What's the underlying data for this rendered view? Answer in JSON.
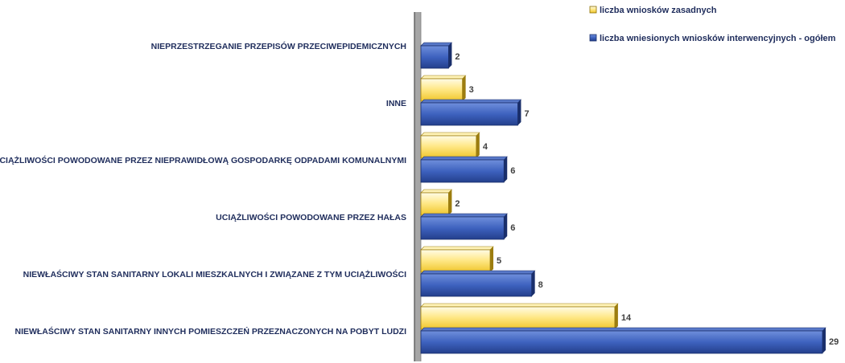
{
  "chart_data": {
    "type": "bar",
    "orientation": "horizontal",
    "categories": [
      "NIEWŁAŚCIWY STAN SANITARNY INNYCH POMIESZCZEŃ PRZEZNACZONYCH NA POBYT LUDZI",
      "NIEWŁAŚCIWY STAN SANITARNY LOKALI MIESZKALNYCH I ZWIĄZANE Z TYM UCIĄŻLIWOŚCI",
      "UCIĄŻLIWOŚCI POWODOWANE PRZEZ HAŁAS",
      "UCIĄŻLIWOŚCI POWODOWANE PRZEZ NIEPRAWIDŁOWĄ GOSPODARKĘ ODPADAMI KOMUNALNYMI",
      "INNE",
      "NIEPRZESTRZEGANIE PRZEPISÓW PRZECIWEPIDEMICZNYCH"
    ],
    "series": [
      {
        "name": "liczba wniosków zasadnych",
        "values": [
          14,
          5,
          2,
          4,
          3,
          null
        ],
        "color": "#f5d64a"
      },
      {
        "name": "liczba wniesionych wniosków interwencyjnych - ogółem",
        "values": [
          29,
          8,
          6,
          6,
          7,
          2
        ],
        "color": "#3356b0"
      }
    ],
    "xlim": [
      0,
      29
    ],
    "grid": false,
    "legend_position": "top-right"
  }
}
